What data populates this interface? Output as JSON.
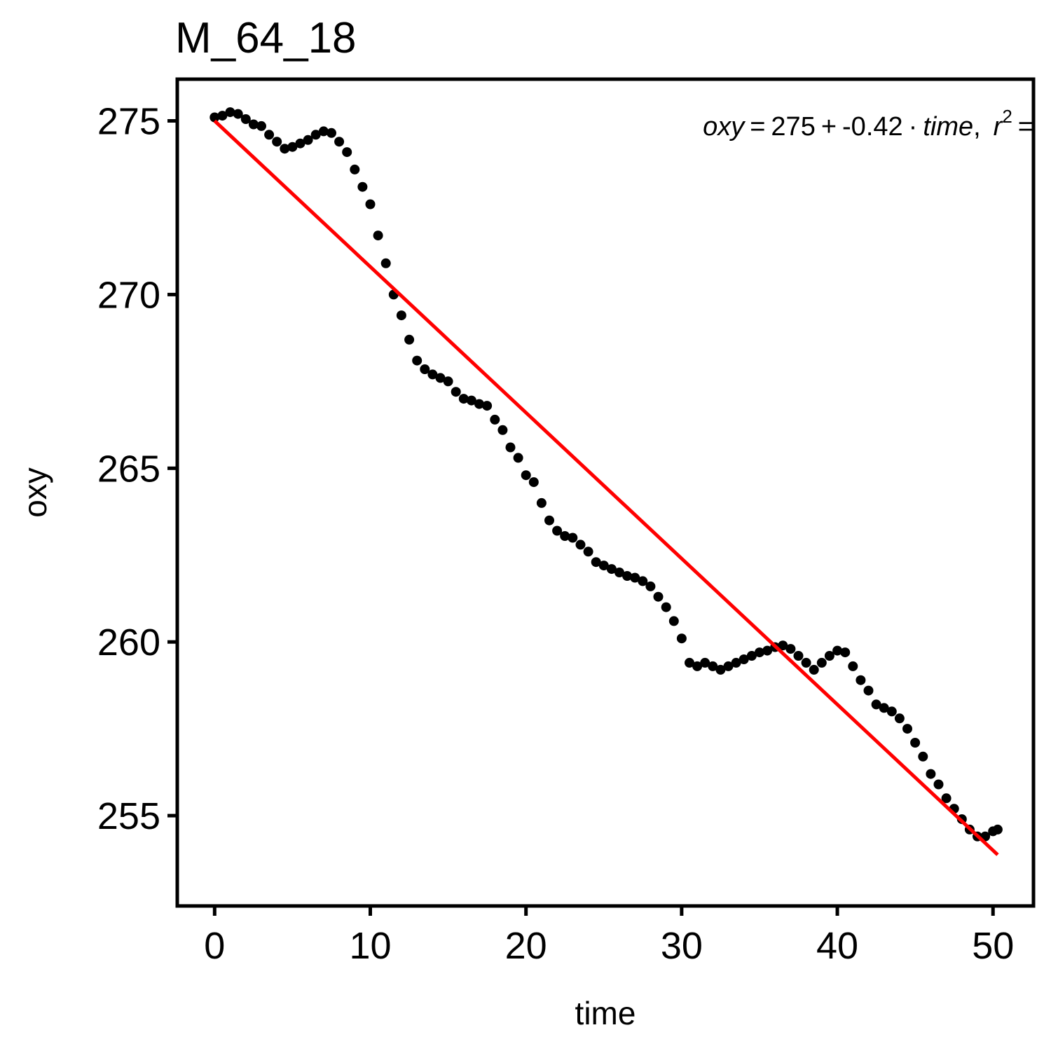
{
  "chart_data": {
    "type": "scatter",
    "title": "M_64_18",
    "xlabel": "time",
    "ylabel": "oxy",
    "xlim": [
      -2.4,
      52.6
    ],
    "ylim": [
      252.4,
      276.2
    ],
    "x_ticks": [
      0,
      10,
      20,
      30,
      40,
      50
    ],
    "y_ticks": [
      255,
      260,
      265,
      270,
      275
    ],
    "x_tick_labels": [
      "0",
      "10",
      "20",
      "30",
      "40",
      "50"
    ],
    "y_tick_labels": [
      "255",
      "260",
      "265",
      "270",
      "275"
    ],
    "grid": false,
    "legend": "none",
    "annotation": {
      "lhs": "oxy",
      "eq": "=",
      "intercept": "275",
      "plus": "+",
      "slope": "-0.42",
      "dot": "·",
      "var": "time",
      "comma": ",",
      "r": "r",
      "sup": "2",
      "eq2": "="
    },
    "fit_line": {
      "intercept": 275,
      "slope": -0.42,
      "x_range": [
        0,
        50.3
      ],
      "color": "#ff0000"
    },
    "point_color": "#000000",
    "series": [
      {
        "x": [
          0,
          0.5,
          1.0,
          1.5,
          2.0,
          2.5,
          3.0,
          3.5,
          4.0,
          4.5,
          5.0,
          5.5,
          6.0,
          6.5,
          7.0,
          7.5,
          8.0,
          8.5,
          9.0,
          9.5,
          10.0,
          10.5,
          11.0,
          11.5,
          12.0,
          12.5,
          13.0,
          13.5,
          14.0,
          14.5,
          15.0,
          15.5,
          16.0,
          16.5,
          17.0,
          17.5,
          18.0,
          18.5,
          19.0,
          19.5,
          20.0,
          20.5,
          21.0,
          21.5,
          22.0,
          22.5,
          23.0,
          23.5,
          24.0,
          24.5,
          25.0,
          25.5,
          26.0,
          26.5,
          27.0,
          27.5,
          28.0,
          28.5,
          29.0,
          29.5,
          30.0,
          30.5,
          31.0,
          31.5,
          32.0,
          32.5,
          33.0,
          33.5,
          34.0,
          34.5,
          35.0,
          35.5,
          36.0,
          36.5,
          37.0,
          37.5,
          38.0,
          38.5,
          39.0,
          39.5,
          40.0,
          40.5,
          41.0,
          41.5,
          42.0,
          42.5,
          43.0,
          43.5,
          44.0,
          44.5,
          45.0,
          45.5,
          46.0,
          46.5,
          47.0,
          47.5,
          48.0,
          48.5,
          49.0,
          49.5,
          50.0,
          50.3
        ],
        "y": [
          275.1,
          275.15,
          275.25,
          275.2,
          275.05,
          274.9,
          274.85,
          274.6,
          274.4,
          274.2,
          274.25,
          274.35,
          274.45,
          274.6,
          274.7,
          274.65,
          274.4,
          274.1,
          273.6,
          273.1,
          272.6,
          271.7,
          270.9,
          270.0,
          269.4,
          268.7,
          268.1,
          267.85,
          267.7,
          267.6,
          267.5,
          267.2,
          267.0,
          266.95,
          266.85,
          266.8,
          266.4,
          266.1,
          265.6,
          265.3,
          264.8,
          264.6,
          264.0,
          263.5,
          263.2,
          263.05,
          263.0,
          262.8,
          262.6,
          262.3,
          262.2,
          262.1,
          262.0,
          261.9,
          261.85,
          261.75,
          261.6,
          261.3,
          261.0,
          260.6,
          260.1,
          259.4,
          259.3,
          259.4,
          259.3,
          259.2,
          259.3,
          259.4,
          259.5,
          259.6,
          259.7,
          259.75,
          259.85,
          259.9,
          259.8,
          259.6,
          259.4,
          259.2,
          259.4,
          259.6,
          259.75,
          259.7,
          259.3,
          258.9,
          258.6,
          258.2,
          258.1,
          258.0,
          257.8,
          257.5,
          257.1,
          256.7,
          256.2,
          255.9,
          255.5,
          255.2,
          254.9,
          254.6,
          254.4,
          254.4,
          254.55,
          254.6
        ]
      }
    ]
  }
}
